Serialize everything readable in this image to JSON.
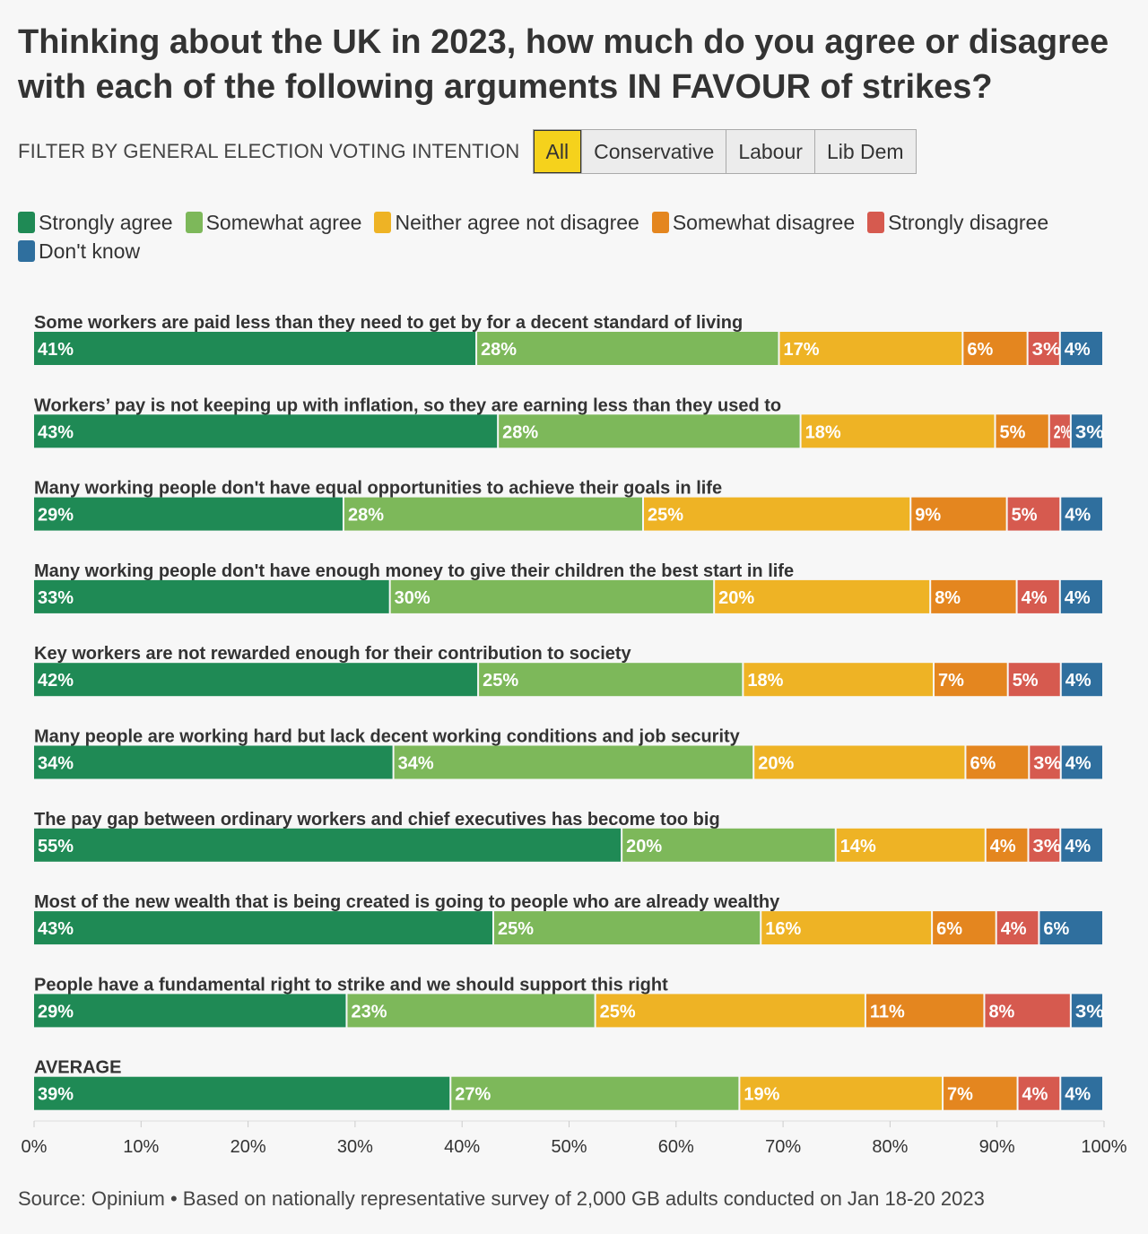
{
  "header": {
    "title": "Thinking about the UK in 2023, how much do you agree or disagree with each of the following arguments IN FAVOUR of strikes?"
  },
  "filter": {
    "label": "FILTER BY GENERAL ELECTION VOTING INTENTION",
    "options": [
      "All",
      "Conservative",
      "Labour",
      "Lib Dem"
    ],
    "selected": "All"
  },
  "colors": {
    "strongly_agree": "#1f8a55",
    "somewhat_agree": "#7db85a",
    "neither": "#eeb325",
    "somewhat_disagree": "#e4861f",
    "strongly_disagree": "#d65a4f",
    "dont_know": "#2f6f9e"
  },
  "chart_data": {
    "type": "bar",
    "orientation": "horizontal",
    "stacked": true,
    "xlim": [
      0,
      100
    ],
    "x_ticks": [
      "0%",
      "10%",
      "20%",
      "30%",
      "40%",
      "50%",
      "60%",
      "70%",
      "80%",
      "90%",
      "100%"
    ],
    "legend_position": "top",
    "series": [
      {
        "name": "Strongly agree",
        "color": "#1f8a55"
      },
      {
        "name": "Somewhat agree",
        "color": "#7db85a"
      },
      {
        "name": "Neither agree not disagree",
        "color": "#eeb325"
      },
      {
        "name": "Somewhat disagree",
        "color": "#e4861f"
      },
      {
        "name": "Strongly disagree",
        "color": "#d65a4f"
      },
      {
        "name": "Don't know",
        "color": "#2f6f9e"
      }
    ],
    "rows": [
      {
        "label": "Some workers are paid less than they need to get by for a decent standard of living",
        "values": [
          41,
          28,
          17,
          6,
          3,
          4
        ]
      },
      {
        "label": "Workers’ pay is not keeping up with inflation, so they are earning less than they used to",
        "values": [
          43,
          28,
          18,
          5,
          2,
          3
        ]
      },
      {
        "label": "Many working people don't have equal opportunities to achieve their goals in life",
        "values": [
          29,
          28,
          25,
          9,
          5,
          4
        ]
      },
      {
        "label": "Many working people don't have enough money to give their children the best start in life",
        "values": [
          33,
          30,
          20,
          8,
          4,
          4
        ]
      },
      {
        "label": "Key workers are not rewarded enough for their contribution to society",
        "values": [
          42,
          25,
          18,
          7,
          5,
          4
        ]
      },
      {
        "label": "Many people are working hard but lack decent working conditions and job security",
        "values": [
          34,
          34,
          20,
          6,
          3,
          4
        ]
      },
      {
        "label": "The pay gap between ordinary workers and chief executives has become too big",
        "values": [
          55,
          20,
          14,
          4,
          3,
          4
        ]
      },
      {
        "label": "Most of the new wealth that is being created is going to people who are already wealthy",
        "values": [
          43,
          25,
          16,
          6,
          4,
          6
        ]
      },
      {
        "label": "People have a fundamental right to strike and we should support this right",
        "values": [
          29,
          23,
          25,
          11,
          8,
          3
        ]
      },
      {
        "label": "AVERAGE",
        "values": [
          39,
          27,
          19,
          7,
          4,
          4
        ]
      }
    ]
  },
  "source": "Source: Opinium • Based on nationally representative survey of 2,000 GB adults conducted on Jan 18-20 2023"
}
